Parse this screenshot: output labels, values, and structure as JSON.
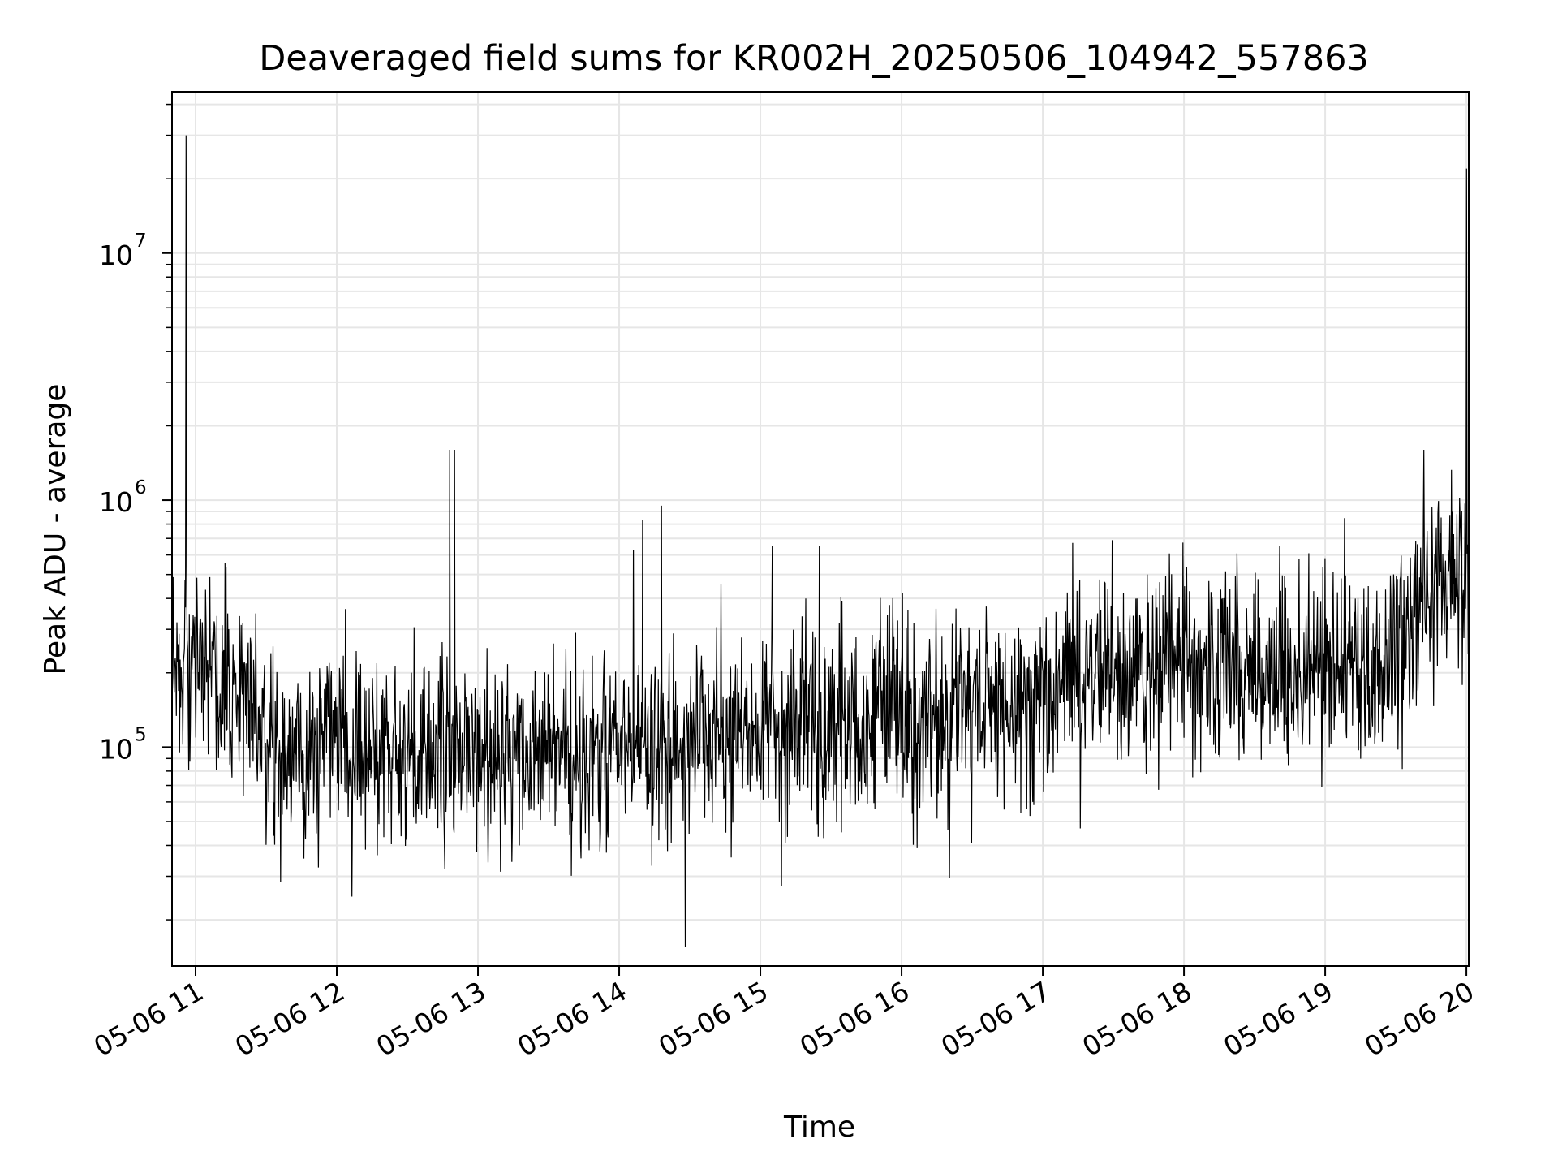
{
  "chart_data": {
    "type": "line",
    "title": "Deaveraged field sums for KR002H_20250506_104942_557863",
    "xlabel": "Time",
    "ylabel": "Peak ADU - average",
    "x_scale": "time",
    "y_scale": "log",
    "xlim": [
      "2025-05-06 10:50",
      "2025-05-06 20:01"
    ],
    "ylim": [
      13000,
      45000000
    ],
    "grid": true,
    "line_color": "#000000",
    "grid_color": "#e6e6e6",
    "x_ticks": [
      {
        "label": "05-06 11",
        "hour": 11
      },
      {
        "label": "05-06 12",
        "hour": 12
      },
      {
        "label": "05-06 13",
        "hour": 13
      },
      {
        "label": "05-06 14",
        "hour": 14
      },
      {
        "label": "05-06 15",
        "hour": 15
      },
      {
        "label": "05-06 16",
        "hour": 16
      },
      {
        "label": "05-06 17",
        "hour": 17
      },
      {
        "label": "05-06 18",
        "hour": 18
      },
      {
        "label": "05-06 19",
        "hour": 19
      },
      {
        "label": "05-06 20",
        "hour": 20
      }
    ],
    "y_ticks": [
      {
        "base": "10",
        "exp": "5",
        "value": 100000
      },
      {
        "base": "10",
        "exp": "6",
        "value": 1000000
      },
      {
        "base": "10",
        "exp": "7",
        "value": 10000000
      }
    ],
    "trend_points": [
      {
        "time": "10:50",
        "value": 250000
      },
      {
        "time": "11:10",
        "value": 200000
      },
      {
        "time": "11:30",
        "value": 110000
      },
      {
        "time": "12:00",
        "value": 100000
      },
      {
        "time": "13:00",
        "value": 90000
      },
      {
        "time": "14:00",
        "value": 95000
      },
      {
        "time": "15:00",
        "value": 115000
      },
      {
        "time": "16:00",
        "value": 130000
      },
      {
        "time": "17:00",
        "value": 160000
      },
      {
        "time": "17:30",
        "value": 200000
      },
      {
        "time": "18:00",
        "value": 210000
      },
      {
        "time": "19:00",
        "value": 200000
      },
      {
        "time": "19:30",
        "value": 210000
      },
      {
        "time": "19:40",
        "value": 450000
      },
      {
        "time": "20:01",
        "value": 550000
      }
    ],
    "spikes": [
      {
        "time": "10:56",
        "value": 30000000
      },
      {
        "time": "12:48",
        "value": 1600000
      },
      {
        "time": "12:50",
        "value": 1600000
      },
      {
        "time": "14:10",
        "value": 830000
      },
      {
        "time": "14:18",
        "value": 950000
      },
      {
        "time": "14:06",
        "value": 630000
      },
      {
        "time": "15:05",
        "value": 650000
      },
      {
        "time": "15:25",
        "value": 650000
      },
      {
        "time": "19:42",
        "value": 1600000
      },
      {
        "time": "20:00",
        "value": 22000000
      }
    ]
  }
}
